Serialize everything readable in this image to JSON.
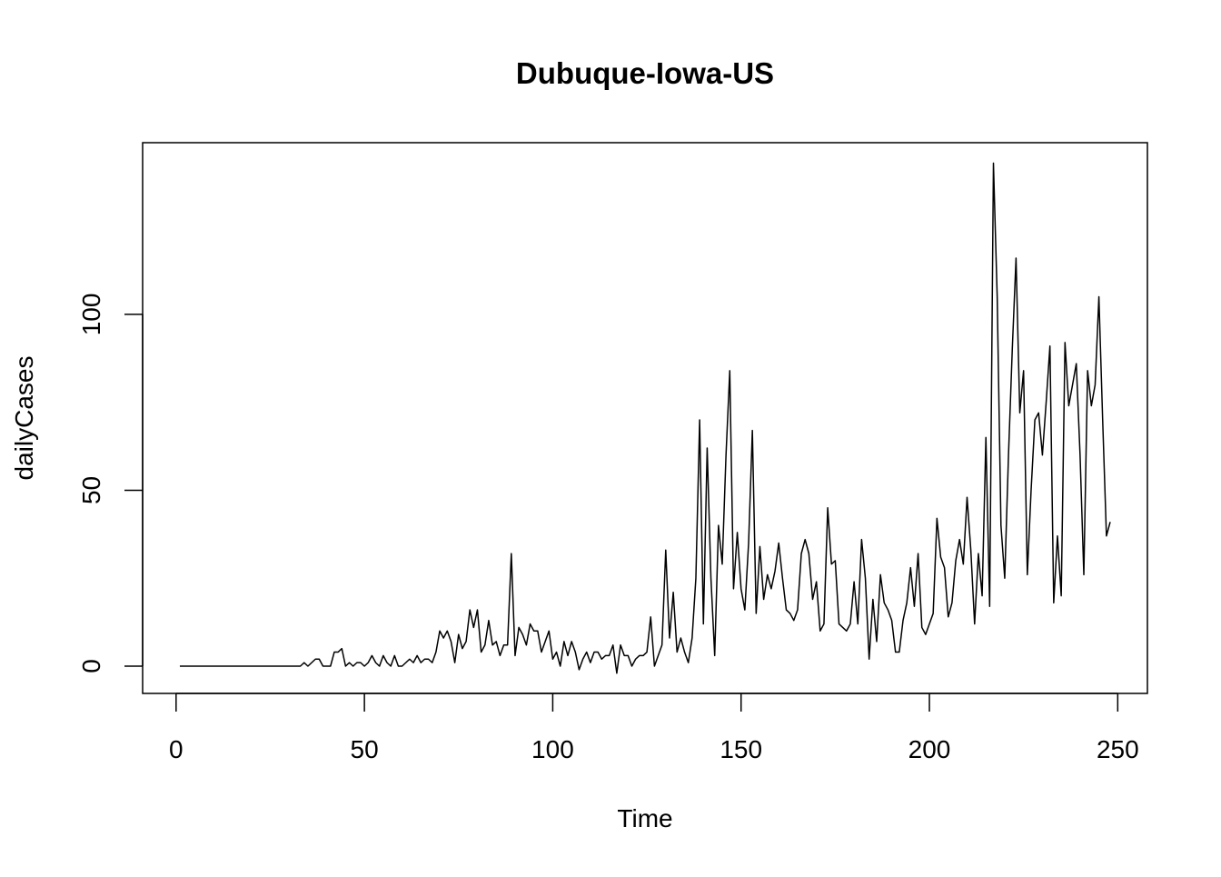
{
  "chart_data": {
    "type": "line",
    "title": "Dubuque-Iowa-US",
    "x_label": "Time",
    "y_label": "dailyCases",
    "x": [
      1,
      2,
      3,
      4,
      5,
      6,
      7,
      8,
      9,
      10,
      11,
      12,
      13,
      14,
      15,
      16,
      17,
      18,
      19,
      20,
      21,
      22,
      23,
      24,
      25,
      26,
      27,
      28,
      29,
      30,
      31,
      32,
      33,
      34,
      35,
      36,
      37,
      38,
      39,
      40,
      41,
      42,
      43,
      44,
      45,
      46,
      47,
      48,
      49,
      50,
      51,
      52,
      53,
      54,
      55,
      56,
      57,
      58,
      59,
      60,
      61,
      62,
      63,
      64,
      65,
      66,
      67,
      68,
      69,
      70,
      71,
      72,
      73,
      74,
      75,
      76,
      77,
      78,
      79,
      80,
      81,
      82,
      83,
      84,
      85,
      86,
      87,
      88,
      89,
      90,
      91,
      92,
      93,
      94,
      95,
      96,
      97,
      98,
      99,
      100,
      101,
      102,
      103,
      104,
      105,
      106,
      107,
      108,
      109,
      110,
      111,
      112,
      113,
      114,
      115,
      116,
      117,
      118,
      119,
      120,
      121,
      122,
      123,
      124,
      125,
      126,
      127,
      128,
      129,
      130,
      131,
      132,
      133,
      134,
      135,
      136,
      137,
      138,
      139,
      140,
      141,
      142,
      143,
      144,
      145,
      146,
      147,
      148,
      149,
      150,
      151,
      152,
      153,
      154,
      155,
      156,
      157,
      158,
      159,
      160,
      161,
      162,
      163,
      164,
      165,
      166,
      167,
      168,
      169,
      170,
      171,
      172,
      173,
      174,
      175,
      176,
      177,
      178,
      179,
      180,
      181,
      182,
      183,
      184,
      185,
      186,
      187,
      188,
      189,
      190,
      191,
      192,
      193,
      194,
      195,
      196,
      197,
      198,
      199,
      200,
      201,
      202,
      203,
      204,
      205,
      206,
      207,
      208,
      209,
      210,
      211,
      212,
      213,
      214,
      215,
      216,
      217,
      218,
      219,
      220,
      221,
      222,
      223,
      224,
      225,
      226,
      227,
      228,
      229,
      230,
      231,
      232,
      233,
      234,
      235,
      236,
      237,
      238,
      239,
      240,
      241,
      242,
      243,
      244,
      245,
      246,
      247,
      248
    ],
    "series": [
      {
        "name": "dailyCases",
        "color": "#000000",
        "values": [
          0,
          0,
          0,
          0,
          0,
          0,
          0,
          0,
          0,
          0,
          0,
          0,
          0,
          0,
          0,
          0,
          0,
          0,
          0,
          0,
          0,
          0,
          0,
          0,
          0,
          0,
          0,
          0,
          0,
          0,
          0,
          0,
          0,
          1,
          0,
          1,
          2,
          2,
          0,
          0,
          0,
          4,
          4,
          5,
          0,
          1,
          0,
          1,
          1,
          0,
          1,
          3,
          1,
          0,
          3,
          1,
          0,
          3,
          0,
          0,
          1,
          2,
          1,
          3,
          1,
          2,
          2,
          1,
          4,
          10,
          8,
          10,
          7,
          1,
          9,
          5,
          7,
          16,
          11,
          16,
          4,
          6,
          13,
          6,
          7,
          3,
          6,
          6,
          32,
          3,
          11,
          9,
          6,
          12,
          10,
          10,
          4,
          7,
          10,
          2,
          4,
          0,
          7,
          3,
          7,
          4,
          -1,
          2,
          4,
          1,
          4,
          4,
          2,
          3,
          3,
          6,
          -2,
          6,
          3,
          3,
          0,
          2,
          3,
          3,
          4,
          14,
          0,
          3,
          6,
          33,
          8,
          21,
          4,
          8,
          4,
          1,
          8,
          25,
          70,
          12,
          62,
          25,
          3,
          40,
          29,
          60,
          84,
          22,
          38,
          22,
          16,
          35,
          67,
          15,
          34,
          19,
          26,
          22,
          27,
          35,
          25,
          16,
          15,
          13,
          16,
          32,
          36,
          32,
          19,
          24,
          10,
          12,
          45,
          29,
          30,
          12,
          11,
          10,
          12,
          24,
          12,
          36,
          25,
          2,
          19,
          7,
          26,
          18,
          16,
          13,
          4,
          4,
          13,
          18,
          28,
          17,
          32,
          11,
          9,
          12,
          15,
          42,
          31,
          28,
          14,
          18,
          30,
          36,
          29,
          48,
          33,
          12,
          32,
          20,
          65,
          17,
          143,
          105,
          40,
          25,
          60,
          90,
          116,
          72,
          84,
          26,
          50,
          70,
          72,
          60,
          75,
          91,
          18,
          37,
          20,
          92,
          74,
          80,
          86,
          60,
          26,
          84,
          74,
          80,
          105,
          70,
          37,
          41
        ]
      }
    ],
    "xlim": [
      -8.88,
      257.88
    ],
    "ylim": [
      -7.75,
      148.8
    ],
    "xticks": [
      0,
      50,
      100,
      150,
      200,
      250
    ],
    "yticks": [
      0,
      50,
      100
    ]
  }
}
